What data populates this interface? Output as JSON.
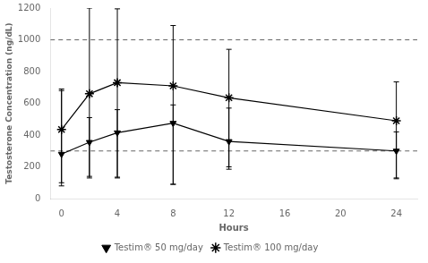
{
  "chart_data": {
    "type": "line",
    "x": [
      0,
      2,
      4,
      8,
      12,
      24
    ],
    "xlabel": "Hours",
    "ylabel": "Testosterone Concentration (ng/dL)",
    "xlim": [
      -0.8,
      25.5
    ],
    "ylim": [
      0,
      1200
    ],
    "xticks": [
      0,
      4,
      8,
      12,
      16,
      20,
      24
    ],
    "yticks": [
      0,
      200,
      400,
      600,
      800,
      1000,
      1200
    ],
    "grid": false,
    "legend": "bottom",
    "reference_lines": [
      1000,
      300
    ],
    "series": [
      {
        "name": "Testim® 50 mg/day",
        "color": "#000000",
        "marker": "triangle_down",
        "line_style": "solid",
        "values": [
          280,
          355,
          415,
          475,
          360,
          300
        ],
        "err_lower": [
          200,
          225,
          285,
          385,
          175,
          170
        ],
        "err_upper": [
          400,
          155,
          145,
          115,
          210,
          120
        ]
      },
      {
        "name": "Testim® 100 mg/day",
        "color": "#000000",
        "marker": "star",
        "line_style": "solid",
        "values": [
          435,
          660,
          730,
          710,
          635,
          490
        ],
        "err_lower": [
          335,
          520,
          595,
          620,
          435,
          365
        ],
        "err_upper": [
          255,
          540,
          465,
          380,
          305,
          245
        ]
      }
    ]
  }
}
